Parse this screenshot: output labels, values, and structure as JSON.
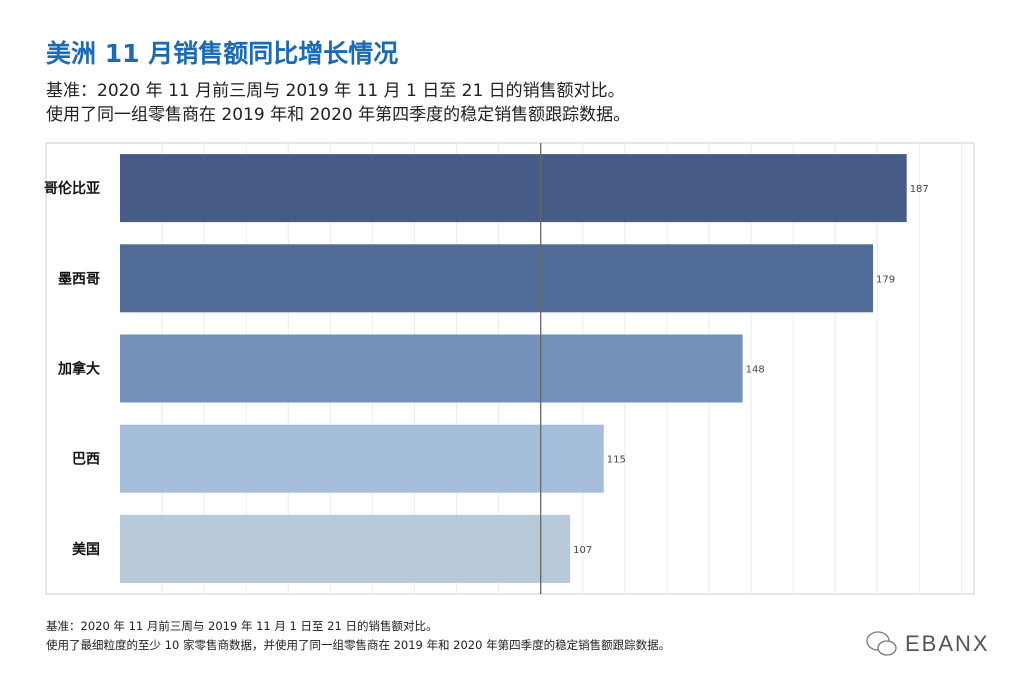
{
  "header": {
    "title": "美洲 11 月销售额同比增长情况",
    "subtitle_1": "基准：2020 年 11 月前三周与 2019 年 11 月 1 日至 21 日的销售额对比。",
    "subtitle_2": "使用了同一组零售商在 2019 年和 2020 年第四季度的稳定销售额跟踪数据。"
  },
  "footer": {
    "note_1": "基准：2020 年 11 月前三周与 2019 年 11 月 1 日至 21 日的销售额对比。",
    "note_2": "使用了最细粒度的至少 10 家零售商数据，并使用了同一组零售商在 2019 年和 2020 年第四季度的稳定销售额跟踪数据。",
    "logo": "EBANX"
  },
  "chart_data": {
    "type": "bar",
    "orientation": "horizontal",
    "categories": [
      "哥伦比亚",
      "墨西哥",
      "加拿大",
      "巴西",
      "美国"
    ],
    "values": [
      187,
      179,
      148,
      115,
      107
    ],
    "colors": [
      "#465b86",
      "#506b96",
      "#7390b8",
      "#a4bedc",
      "#b8c9da"
    ],
    "reference_line": 100,
    "xlim": [
      0,
      203
    ],
    "grid": true
  }
}
